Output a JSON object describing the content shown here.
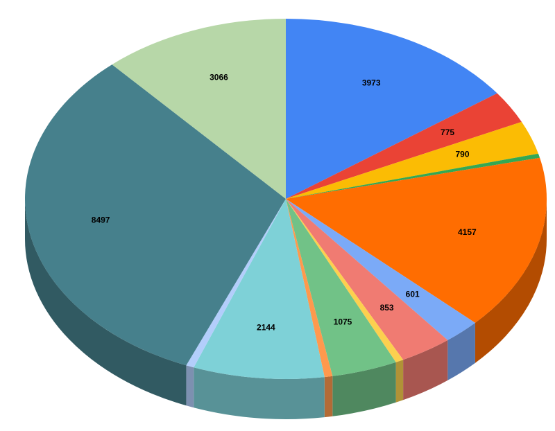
{
  "chart_data": {
    "type": "pie3d",
    "values": [
      3973,
      775,
      790,
      100,
      4157,
      601,
      853,
      130,
      1075,
      130,
      2144,
      130,
      8497,
      3066
    ],
    "value_labels": [
      "3973",
      "775",
      "790",
      null,
      "4157",
      "601",
      "853",
      null,
      "1075",
      null,
      "2144",
      null,
      "8497",
      "3066"
    ],
    "colors": [
      "#4285f4",
      "#ea4335",
      "#fbbc04",
      "#34a853",
      "#ff6d01",
      "#7baaf7",
      "#f07b72",
      "#fcd04f",
      "#71c287",
      "#ff994d",
      "#7ed1d7",
      "#b3cefb",
      "#46808c",
      "#b7d7a8"
    ]
  }
}
